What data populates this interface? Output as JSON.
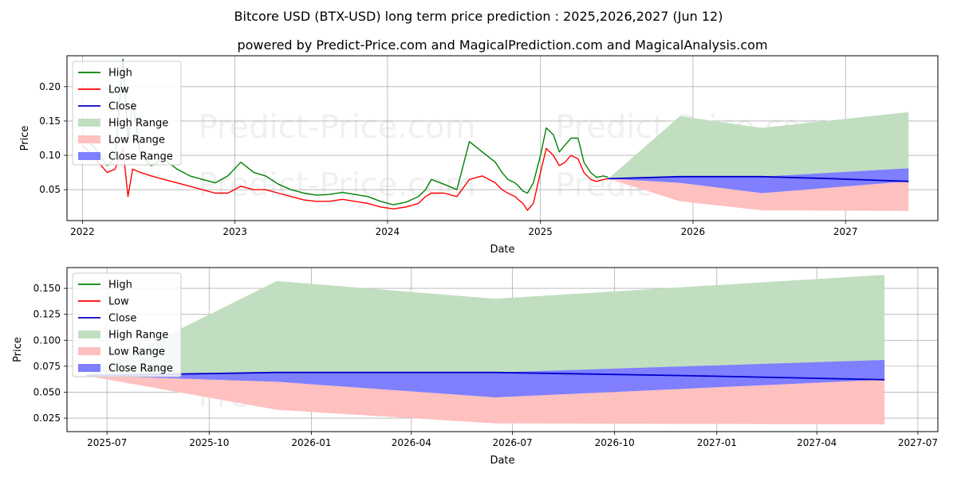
{
  "header": {
    "title": "Bitcore USD (BTX-USD) long term price prediction : 2025,2026,2027 (Jun 12)",
    "subtitle": "powered by Predict-Price.com and MagicalPrediction.com and MagicalAnalysis.com"
  },
  "watermark": "Predict-Price.com",
  "legend": {
    "high": "High",
    "low": "Low",
    "close": "Close",
    "high_range": "High Range",
    "low_range": "Low Range",
    "close_range": "Close Range"
  },
  "colors": {
    "high": "#008000",
    "low": "#ff0000",
    "close": "#0000cc",
    "high_range": "#c1dfc0",
    "low_range": "#ffc0c0",
    "close_range": "#7f7fff",
    "grid": "#b0b0b0"
  },
  "chart_data": [
    {
      "type": "line",
      "xlabel": "Date",
      "ylabel": "Price",
      "xlim": [
        "2021-11-25",
        "2027-08-10"
      ],
      "ylim": [
        0.005,
        0.245
      ],
      "grid": true,
      "legend_position": "top-left",
      "x_ticks": [
        "2022",
        "2023",
        "2024",
        "2025",
        "2026",
        "2027"
      ],
      "y_ticks": [
        "0.05",
        "0.10",
        "0.15",
        "0.20"
      ],
      "series": [
        {
          "name": "High",
          "x": [
            "2022-01-01",
            "2022-02-01",
            "2022-03-01",
            "2022-03-20",
            "2022-04-08",
            "2022-04-20",
            "2022-05-01",
            "2022-05-20",
            "2022-06-15",
            "2022-07-15",
            "2022-08-15",
            "2022-09-15",
            "2022-10-15",
            "2022-11-15",
            "2022-12-15",
            "2023-01-15",
            "2023-02-15",
            "2023-03-15",
            "2023-04-15",
            "2023-05-15",
            "2023-06-15",
            "2023-07-15",
            "2023-08-15",
            "2023-09-15",
            "2023-10-15",
            "2023-11-15",
            "2023-12-15",
            "2024-01-15",
            "2024-02-15",
            "2024-03-15",
            "2024-04-01",
            "2024-04-15",
            "2024-05-15",
            "2024-06-15",
            "2024-07-15",
            "2024-08-15",
            "2024-09-15",
            "2024-10-01",
            "2024-10-15",
            "2024-11-01",
            "2024-11-10",
            "2024-11-20",
            "2024-12-01",
            "2024-12-15",
            "2025-01-01",
            "2025-01-15",
            "2025-02-01",
            "2025-02-15",
            "2025-03-01",
            "2025-03-15",
            "2025-04-01",
            "2025-04-15",
            "2025-05-01",
            "2025-05-15",
            "2025-06-01",
            "2025-06-12"
          ],
          "values": [
            0.13,
            0.11,
            0.085,
            0.095,
            0.24,
            0.12,
            0.18,
            0.1,
            0.085,
            0.095,
            0.08,
            0.07,
            0.065,
            0.06,
            0.07,
            0.09,
            0.075,
            0.07,
            0.058,
            0.05,
            0.045,
            0.042,
            0.043,
            0.046,
            0.043,
            0.04,
            0.033,
            0.028,
            0.032,
            0.04,
            0.05,
            0.065,
            0.058,
            0.05,
            0.12,
            0.105,
            0.09,
            0.075,
            0.065,
            0.06,
            0.055,
            0.048,
            0.045,
            0.06,
            0.1,
            0.14,
            0.13,
            0.105,
            0.115,
            0.125,
            0.125,
            0.09,
            0.075,
            0.068,
            0.07,
            0.068
          ]
        },
        {
          "name": "Low",
          "x": [
            "2022-01-01",
            "2022-02-01",
            "2022-03-01",
            "2022-03-20",
            "2022-04-08",
            "2022-04-20",
            "2022-05-01",
            "2022-05-20",
            "2022-06-15",
            "2022-07-15",
            "2022-08-15",
            "2022-09-15",
            "2022-10-15",
            "2022-11-15",
            "2022-12-15",
            "2023-01-15",
            "2023-02-15",
            "2023-03-15",
            "2023-04-15",
            "2023-05-15",
            "2023-06-15",
            "2023-07-15",
            "2023-08-15",
            "2023-09-15",
            "2023-10-15",
            "2023-11-15",
            "2023-12-15",
            "2024-01-15",
            "2024-02-15",
            "2024-03-15",
            "2024-04-01",
            "2024-04-15",
            "2024-05-15",
            "2024-06-15",
            "2024-07-15",
            "2024-08-15",
            "2024-09-15",
            "2024-10-01",
            "2024-10-15",
            "2024-11-01",
            "2024-11-10",
            "2024-11-20",
            "2024-12-01",
            "2024-12-15",
            "2025-01-01",
            "2025-01-15",
            "2025-02-01",
            "2025-02-15",
            "2025-03-01",
            "2025-03-15",
            "2025-04-01",
            "2025-04-15",
            "2025-05-01",
            "2025-05-15",
            "2025-06-01",
            "2025-06-12"
          ],
          "values": [
            0.115,
            0.095,
            0.075,
            0.08,
            0.11,
            0.04,
            0.08,
            0.075,
            0.07,
            0.065,
            0.06,
            0.055,
            0.05,
            0.045,
            0.045,
            0.055,
            0.05,
            0.05,
            0.045,
            0.04,
            0.035,
            0.033,
            0.033,
            0.036,
            0.033,
            0.03,
            0.025,
            0.022,
            0.025,
            0.03,
            0.04,
            0.045,
            0.045,
            0.04,
            0.065,
            0.07,
            0.06,
            0.05,
            0.045,
            0.04,
            0.035,
            0.03,
            0.02,
            0.03,
            0.075,
            0.11,
            0.1,
            0.085,
            0.09,
            0.1,
            0.095,
            0.075,
            0.065,
            0.062,
            0.065,
            0.066
          ]
        },
        {
          "name": "Close",
          "x": [
            "2025-06-12",
            "2025-12-01",
            "2026-06-15",
            "2026-12-01",
            "2027-06-01"
          ],
          "values": [
            0.066,
            0.069,
            0.069,
            0.066,
            0.062
          ]
        }
      ],
      "ranges": [
        {
          "name": "High Range",
          "x": [
            "2025-06-12",
            "2025-12-01",
            "2026-06-15",
            "2027-06-01"
          ],
          "upper": [
            0.066,
            0.157,
            0.14,
            0.163
          ],
          "lower": [
            0.066,
            0.069,
            0.069,
            0.062
          ]
        },
        {
          "name": "Low Range",
          "x": [
            "2025-06-12",
            "2025-12-01",
            "2026-06-15",
            "2027-06-01"
          ],
          "upper": [
            0.066,
            0.06,
            0.045,
            0.062
          ],
          "lower": [
            0.066,
            0.033,
            0.02,
            0.019
          ]
        },
        {
          "name": "Close Range",
          "x": [
            "2025-06-12",
            "2025-12-01",
            "2026-06-15",
            "2027-06-01"
          ],
          "upper": [
            0.066,
            0.069,
            0.069,
            0.081
          ],
          "lower": [
            0.066,
            0.06,
            0.045,
            0.062
          ]
        }
      ]
    },
    {
      "type": "line",
      "xlabel": "Date",
      "ylabel": "Price",
      "xlim": [
        "2025-05-26",
        "2027-07-19"
      ],
      "ylim": [
        0.012,
        0.17
      ],
      "grid": true,
      "legend_position": "top-left",
      "x_ticks": [
        "2025-07",
        "2025-10",
        "2026-01",
        "2026-04",
        "2026-07",
        "2026-10",
        "2027-01",
        "2027-04",
        "2027-07"
      ],
      "y_ticks": [
        "0.025",
        "0.050",
        "0.075",
        "0.100",
        "0.125",
        "0.150"
      ],
      "series": [
        {
          "name": "Close",
          "x": [
            "2025-06-12",
            "2025-12-01",
            "2026-06-15",
            "2026-12-01",
            "2027-06-01"
          ],
          "values": [
            0.066,
            0.069,
            0.069,
            0.066,
            0.062
          ]
        }
      ],
      "ranges": [
        {
          "name": "High Range",
          "x": [
            "2025-06-12",
            "2025-12-01",
            "2026-06-15",
            "2027-06-01"
          ],
          "upper": [
            0.066,
            0.157,
            0.14,
            0.163
          ],
          "lower": [
            0.066,
            0.069,
            0.069,
            0.062
          ]
        },
        {
          "name": "Low Range",
          "x": [
            "2025-06-12",
            "2025-12-01",
            "2026-06-15",
            "2027-06-01"
          ],
          "upper": [
            0.066,
            0.06,
            0.045,
            0.062
          ],
          "lower": [
            0.066,
            0.033,
            0.02,
            0.019
          ]
        },
        {
          "name": "Close Range",
          "x": [
            "2025-06-12",
            "2025-12-01",
            "2026-06-15",
            "2027-06-01"
          ],
          "upper": [
            0.066,
            0.069,
            0.069,
            0.081
          ],
          "lower": [
            0.066,
            0.06,
            0.045,
            0.062
          ]
        }
      ]
    }
  ]
}
